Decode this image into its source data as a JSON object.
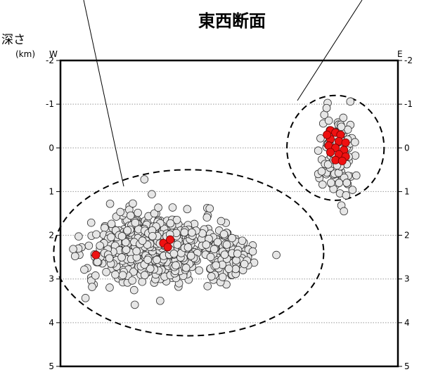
{
  "title": "東西断面",
  "depth_label": "深さ",
  "unit_label": "(km)",
  "west_label": "W",
  "east_label": "E",
  "colors": {
    "normal_fill": "#e6e6e6",
    "highlight_fill": "#ee1111",
    "stroke": "#333333"
  },
  "chart_data": {
    "type": "scatter",
    "title": "東西断面",
    "ylabel": "深さ (km)",
    "ylim": [
      -2,
      5
    ],
    "y_ticks": [
      "-2",
      "-1",
      "0",
      "1",
      "2",
      "3",
      "4",
      "5"
    ],
    "grid": "horizontal dotted",
    "series": [
      {
        "color": "#e6e6e6",
        "clusters": [
          {
            "center": [
              0.27,
              2.3
            ],
            "spread": [
              0.095,
              0.39
            ],
            "count": 560
          },
          {
            "center": [
              0.31,
              2.05
            ],
            "spread": [
              0.055,
              0.18
            ],
            "count": 90
          },
          {
            "center": [
              0.5,
              2.5
            ],
            "spread": [
              0.028,
              0.26
            ],
            "count": 110
          },
          {
            "center": [
              0.82,
              0.15
            ],
            "spread": [
              0.025,
              0.45
            ],
            "count": 130
          }
        ]
      },
      {
        "color": "#ee1111",
        "points": [
          [
            0.105,
            2.45
          ],
          [
            0.305,
            2.18
          ],
          [
            0.325,
            2.1
          ],
          [
            0.318,
            2.27
          ],
          [
            0.8,
            -0.4
          ],
          [
            0.815,
            -0.35
          ],
          [
            0.83,
            -0.3
          ],
          [
            0.8,
            -0.2
          ],
          [
            0.825,
            -0.15
          ],
          [
            0.845,
            -0.12
          ],
          [
            0.795,
            -0.05
          ],
          [
            0.815,
            0.0
          ],
          [
            0.84,
            0.05
          ],
          [
            0.8,
            0.1
          ],
          [
            0.825,
            0.15
          ],
          [
            0.845,
            0.2
          ],
          [
            0.815,
            0.28
          ],
          [
            0.835,
            0.3
          ],
          [
            0.79,
            -0.3
          ]
        ]
      }
    ],
    "annotations": [
      {
        "shape": "dashed-ellipse",
        "center": [
          0.38,
          2.4
        ],
        "radius": [
          0.4,
          1.9
        ]
      },
      {
        "shape": "dashed-ellipse",
        "center": [
          0.815,
          0.0
        ],
        "radius": [
          0.144,
          1.2
        ]
      }
    ]
  }
}
